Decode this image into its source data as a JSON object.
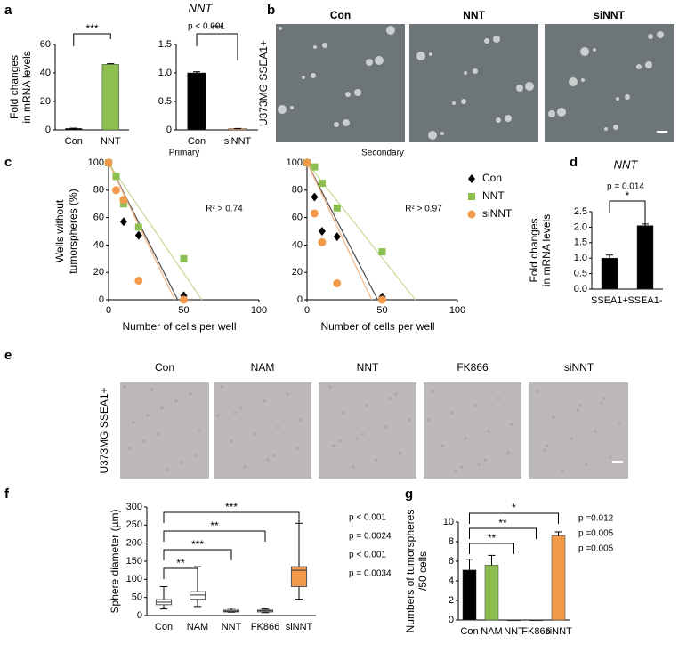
{
  "chart_data": [
    {
      "type": "bar",
      "panel": "a",
      "title": "NNT",
      "annotation": "p < 0.001",
      "ylabel": [
        "Fold changes",
        "in mRNA levels"
      ],
      "categories": [
        "Con",
        "NNT"
      ],
      "values": [
        1,
        46
      ],
      "errors": [
        0.2,
        0.5
      ],
      "colors": [
        "#000000",
        "#8cbf4f"
      ],
      "ylim": [
        0,
        60
      ],
      "yticks": [
        0,
        20,
        40,
        60
      ],
      "significance": "***"
    },
    {
      "type": "bar",
      "categories": [
        "Con",
        "siNNT"
      ],
      "values": [
        1.0,
        0.02
      ],
      "errors": [
        0.02,
        0.005
      ],
      "colors": [
        "#000000",
        "#f29a4a"
      ],
      "ylim": [
        0,
        1.5
      ],
      "yticks": [
        0,
        0.5,
        {
          "value": 1,
          "label": "1.0"
        },
        1.5
      ],
      "significance": "***"
    },
    {
      "type": "scatter",
      "panel": "c",
      "title": "Primary",
      "annotation": "R² > 0.74",
      "xlabel": "Number of cells per well",
      "ylabel": [
        "Wells without",
        "tumorspheres (%)"
      ],
      "xlim": [
        0,
        100
      ],
      "xticks": [
        0,
        50,
        100
      ],
      "ylim": [
        0,
        100
      ],
      "yticks": [
        0,
        20,
        40,
        60,
        80,
        100
      ],
      "series": [
        {
          "name": "Con",
          "color": "#000000",
          "marker": "diamond",
          "x": [
            0,
            10,
            20,
            50
          ],
          "values": [
            100,
            57,
            47,
            3
          ],
          "fit": {
            "color": "#555555",
            "x": [
              0,
              46
            ],
            "values": [
              100,
              0
            ]
          }
        },
        {
          "name": "NNT",
          "color": "#8cbf4f",
          "marker": "square",
          "x": [
            0,
            5,
            10,
            20,
            50
          ],
          "values": [
            100,
            90,
            70,
            53,
            30
          ],
          "fit": {
            "color": "#c9dc9a",
            "x": [
              0,
              62
            ],
            "values": [
              100,
              0
            ]
          }
        },
        {
          "name": "siNNT",
          "color": "#f29a4a",
          "marker": "circle",
          "x": [
            0,
            5,
            10,
            20,
            50
          ],
          "values": [
            100,
            80,
            73,
            14,
            0
          ],
          "fit": {
            "color": "#f6b98a",
            "x": [
              0,
              44
            ],
            "values": [
              100,
              0
            ]
          }
        }
      ]
    },
    {
      "type": "scatter",
      "title": "Secondary",
      "annotation": "R² > 0.97",
      "xlabel": "Number of cells per well",
      "legend": "right",
      "xlim": [
        0,
        100
      ],
      "xticks": [
        0,
        50,
        100
      ],
      "ylim": [
        0,
        100
      ],
      "yticks": [
        0,
        20,
        40,
        60,
        80,
        100
      ],
      "series": [
        {
          "name": "Con",
          "color": "#000000",
          "marker": "diamond",
          "x": [
            0,
            5,
            10,
            20,
            50
          ],
          "values": [
            100,
            75,
            50,
            46,
            2
          ],
          "fit": {
            "color": "#555555",
            "x": [
              0,
              47
            ],
            "values": [
              100,
              0
            ]
          }
        },
        {
          "name": "NNT",
          "color": "#8cbf4f",
          "marker": "square",
          "x": [
            0,
            5,
            10,
            20,
            50
          ],
          "values": [
            100,
            97,
            85,
            67,
            35
          ],
          "fit": {
            "color": "#c9dc9a",
            "x": [
              0,
              72
            ],
            "values": [
              100,
              0
            ]
          }
        },
        {
          "name": "siNNT",
          "color": "#f29a4a",
          "marker": "circle",
          "x": [
            0,
            5,
            10,
            20,
            50
          ],
          "values": [
            100,
            63,
            42,
            12,
            0
          ],
          "fit": {
            "color": "#f6b98a",
            "x": [
              0,
              43
            ],
            "values": [
              100,
              0
            ]
          }
        }
      ]
    },
    {
      "type": "bar",
      "panel": "d",
      "title": "NNT",
      "annotation": "p = 0.014",
      "ylabel": [
        "Fold changes",
        "in mRNA levels"
      ],
      "categories": [
        "SSEA1+",
        "SSEA1-"
      ],
      "values": [
        1.0,
        2.05
      ],
      "errors": [
        0.1,
        0.05
      ],
      "colors": [
        "#000000",
        "#000000"
      ],
      "ylim": [
        0,
        2.5
      ],
      "yticks": [
        {
          "value": 0,
          "label": "0.0"
        },
        0.5,
        {
          "value": 1,
          "label": "1.0"
        },
        1.5,
        {
          "value": 2,
          "label": "2.0"
        },
        2.5
      ],
      "significance": "*"
    },
    {
      "type": "box",
      "panel": "f",
      "ylabel": [
        "Sphere diameter (µm)"
      ],
      "categories": [
        "Con",
        "NAM",
        "NNT",
        "FK866",
        "siNNT"
      ],
      "boxes": [
        {
          "min": 18,
          "q1": 30,
          "median": 37,
          "q3": 44,
          "max": 80
        },
        {
          "min": 25,
          "q1": 45,
          "median": 57,
          "q3": 66,
          "max": 135
        },
        {
          "min": 9,
          "q1": 10,
          "median": 12,
          "q3": 15,
          "max": 20
        },
        {
          "min": 8,
          "q1": 10,
          "median": 13,
          "q3": 15,
          "max": 18
        },
        {
          "min": 45,
          "q1": 80,
          "median": 125,
          "q3": 135,
          "max": 255
        }
      ],
      "colors": [
        "#ffffff",
        "#ffffff",
        "#ffffff",
        "#ffffff",
        "#f29a4a"
      ],
      "ylim": [
        0,
        300
      ],
      "yticks": [
        0,
        50,
        100,
        150,
        200,
        250,
        300
      ],
      "significance": [
        "***",
        "**",
        "***",
        "**"
      ],
      "p_values": [
        "p < 0.001",
        "p = 0.0024",
        "p < 0.001",
        "p = 0.0034"
      ]
    },
    {
      "type": "bar",
      "panel": "g",
      "ylabel": [
        "Numbers of tumorspheres",
        "/50 cells"
      ],
      "categories": [
        "Con",
        "NAM",
        "NNT",
        "FK866",
        "siNNT"
      ],
      "values": [
        5.1,
        5.6,
        0,
        0,
        8.6
      ],
      "errors": [
        1.1,
        1.0,
        0,
        0,
        0.4
      ],
      "colors": [
        "#000000",
        "#8cbf4f",
        "#000000",
        "#000000",
        "#f29a4a"
      ],
      "ylim": [
        0,
        10
      ],
      "yticks": [
        0,
        2,
        4,
        6,
        8,
        10
      ],
      "significance": [
        "*",
        "**",
        "**"
      ],
      "p_values": [
        "p =0.012",
        "p =0.005",
        "p =0.005"
      ]
    }
  ],
  "image_panels": [
    {
      "panel": "b",
      "ylabel": "U373MG SSEA1+",
      "labels": [
        "Con",
        "NNT",
        "siNNT"
      ]
    },
    {
      "panel": "e",
      "ylabel": "U373MG SSEA1+",
      "labels": [
        "Con",
        "NAM",
        "NNT",
        "FK866",
        "siNNT"
      ]
    }
  ]
}
